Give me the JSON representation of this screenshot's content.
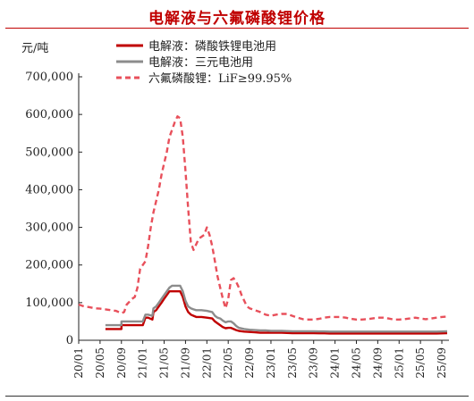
{
  "title": "电解液与六氟磷酸锂价格",
  "chart_data": {
    "type": "line",
    "title": "电解液与六氟磷酸锂价格",
    "ylabel": "元/吨",
    "xlabel": "",
    "ylim": [
      0,
      700000
    ],
    "yticks": [
      "0",
      "100,000",
      "200,000",
      "300,000",
      "400,000",
      "500,000",
      "600,000",
      "700,000"
    ],
    "xticks": [
      "20/01",
      "20/05",
      "20/09",
      "21/01",
      "21/05",
      "21/09",
      "22/01",
      "22/05",
      "22/09",
      "23/01",
      "23/05",
      "23/09",
      "24/01",
      "24/05",
      "24/09",
      "25/01",
      "25/05",
      "25/09"
    ],
    "legend_position": "top",
    "grid": false,
    "series": [
      {
        "name": "电解液：磷酸铁锂电池用",
        "color": "#c00000",
        "style": "solid",
        "points": [
          [
            5,
            30000
          ],
          [
            8,
            30000
          ],
          [
            8,
            40000
          ],
          [
            11,
            40000
          ],
          [
            12,
            40000
          ],
          [
            12.5,
            60000
          ],
          [
            13,
            60000
          ],
          [
            13.8,
            55000
          ],
          [
            14,
            75000
          ],
          [
            14.5,
            80000
          ],
          [
            15,
            90000
          ],
          [
            15.5,
            100000
          ],
          [
            16,
            110000
          ],
          [
            16.5,
            120000
          ],
          [
            17,
            130000
          ],
          [
            18,
            130000
          ],
          [
            19,
            130000
          ],
          [
            19.5,
            115000
          ],
          [
            20,
            90000
          ],
          [
            20.5,
            75000
          ],
          [
            21,
            68000
          ],
          [
            21.5,
            65000
          ],
          [
            22,
            62000
          ],
          [
            23,
            62000
          ],
          [
            24,
            60000
          ],
          [
            25,
            58000
          ],
          [
            25.5,
            50000
          ],
          [
            26,
            45000
          ],
          [
            26.5,
            40000
          ],
          [
            27,
            35000
          ],
          [
            27.5,
            32000
          ],
          [
            28,
            33000
          ],
          [
            28.5,
            33000
          ],
          [
            29,
            30000
          ],
          [
            29.5,
            27000
          ],
          [
            30,
            25000
          ],
          [
            31,
            23000
          ],
          [
            32,
            22000
          ],
          [
            33,
            21000
          ],
          [
            34,
            20000
          ],
          [
            35,
            20000
          ],
          [
            36,
            20000
          ],
          [
            37,
            20000
          ],
          [
            38,
            20000
          ],
          [
            39,
            19500
          ],
          [
            40,
            19000
          ],
          [
            41,
            19000
          ],
          [
            42,
            19000
          ],
          [
            43,
            19000
          ],
          [
            44,
            19000
          ],
          [
            45,
            18500
          ],
          [
            46,
            18500
          ],
          [
            47,
            18000
          ],
          [
            48,
            18000
          ],
          [
            49,
            18000
          ],
          [
            50,
            18000
          ],
          [
            51,
            18000
          ],
          [
            52,
            18000
          ],
          [
            53,
            18000
          ],
          [
            54,
            18000
          ],
          [
            55,
            18000
          ],
          [
            56,
            18000
          ],
          [
            57,
            18000
          ],
          [
            58,
            18000
          ],
          [
            59,
            18000
          ],
          [
            60,
            18000
          ],
          [
            61,
            18000
          ],
          [
            62,
            18000
          ],
          [
            63,
            18000
          ],
          [
            64,
            18000
          ],
          [
            65,
            18000
          ],
          [
            67,
            18000
          ],
          [
            69,
            19000
          ]
        ]
      },
      {
        "name": "电解液：三元电池用",
        "color": "#8c8c8c",
        "style": "solid",
        "points": [
          [
            5,
            40000
          ],
          [
            8,
            40000
          ],
          [
            8,
            50000
          ],
          [
            11,
            50000
          ],
          [
            12,
            50000
          ],
          [
            12.5,
            68000
          ],
          [
            13,
            68000
          ],
          [
            13.8,
            65000
          ],
          [
            14,
            85000
          ],
          [
            14.5,
            90000
          ],
          [
            15,
            100000
          ],
          [
            15.5,
            110000
          ],
          [
            16,
            120000
          ],
          [
            16.5,
            130000
          ],
          [
            17,
            140000
          ],
          [
            17.5,
            145000
          ],
          [
            18,
            145000
          ],
          [
            19,
            145000
          ],
          [
            19.5,
            130000
          ],
          [
            20,
            105000
          ],
          [
            20.5,
            90000
          ],
          [
            21,
            85000
          ],
          [
            21.5,
            82000
          ],
          [
            22,
            80000
          ],
          [
            23,
            80000
          ],
          [
            24,
            78000
          ],
          [
            25,
            75000
          ],
          [
            25.5,
            65000
          ],
          [
            26,
            60000
          ],
          [
            26.5,
            58000
          ],
          [
            27,
            52000
          ],
          [
            27.5,
            48000
          ],
          [
            28,
            50000
          ],
          [
            28.5,
            50000
          ],
          [
            29,
            45000
          ],
          [
            29.5,
            38000
          ],
          [
            30,
            33000
          ],
          [
            31,
            30000
          ],
          [
            32,
            28000
          ],
          [
            33,
            27000
          ],
          [
            34,
            26000
          ],
          [
            35,
            26000
          ],
          [
            36,
            25000
          ],
          [
            37,
            25000
          ],
          [
            38,
            25000
          ],
          [
            39,
            24500
          ],
          [
            40,
            24000
          ],
          [
            41,
            24000
          ],
          [
            42,
            24000
          ],
          [
            43,
            24000
          ],
          [
            44,
            24000
          ],
          [
            45,
            23500
          ],
          [
            46,
            23500
          ],
          [
            47,
            23000
          ],
          [
            48,
            23000
          ],
          [
            49,
            23000
          ],
          [
            50,
            23000
          ],
          [
            51,
            23000
          ],
          [
            52,
            23000
          ],
          [
            53,
            23000
          ],
          [
            54,
            23000
          ],
          [
            55,
            23000
          ],
          [
            56,
            23000
          ],
          [
            57,
            23000
          ],
          [
            58,
            23000
          ],
          [
            59,
            23000
          ],
          [
            60,
            23000
          ],
          [
            61,
            23000
          ],
          [
            62,
            23000
          ],
          [
            63,
            23000
          ],
          [
            64,
            23000
          ],
          [
            65,
            23000
          ],
          [
            67,
            23000
          ],
          [
            69,
            24000
          ]
        ]
      },
      {
        "name": "六氟磷酸锂：LiF≥99.95%",
        "color": "#e8505b",
        "style": "dashed",
        "points": [
          [
            0,
            95000
          ],
          [
            1,
            90000
          ],
          [
            2,
            88000
          ],
          [
            3,
            85000
          ],
          [
            4,
            84000
          ],
          [
            5,
            82000
          ],
          [
            6,
            80000
          ],
          [
            7,
            78000
          ],
          [
            8,
            72000
          ],
          [
            8.5,
            75000
          ],
          [
            9,
            95000
          ],
          [
            10,
            110000
          ],
          [
            10.5,
            115000
          ],
          [
            11,
            140000
          ],
          [
            11.5,
            190000
          ],
          [
            12,
            200000
          ],
          [
            12.5,
            210000
          ],
          [
            13,
            250000
          ],
          [
            13.5,
            300000
          ],
          [
            14,
            340000
          ],
          [
            14.5,
            370000
          ],
          [
            15,
            400000
          ],
          [
            15.5,
            440000
          ],
          [
            16,
            470000
          ],
          [
            16.5,
            500000
          ],
          [
            17,
            540000
          ],
          [
            17.5,
            560000
          ],
          [
            18,
            580000
          ],
          [
            18.5,
            595000
          ],
          [
            19,
            590000
          ],
          [
            19.5,
            540000
          ],
          [
            20,
            450000
          ],
          [
            20.5,
            350000
          ],
          [
            21,
            260000
          ],
          [
            21.5,
            240000
          ],
          [
            22,
            255000
          ],
          [
            22.5,
            270000
          ],
          [
            23,
            275000
          ],
          [
            23.5,
            280000
          ],
          [
            24,
            300000
          ],
          [
            24.5,
            280000
          ],
          [
            25,
            250000
          ],
          [
            25.5,
            210000
          ],
          [
            26,
            170000
          ],
          [
            26.5,
            140000
          ],
          [
            27,
            110000
          ],
          [
            27.5,
            85000
          ],
          [
            28,
            110000
          ],
          [
            28.5,
            160000
          ],
          [
            29,
            165000
          ],
          [
            29.5,
            155000
          ],
          [
            30,
            140000
          ],
          [
            30.5,
            120000
          ],
          [
            31,
            105000
          ],
          [
            31.5,
            90000
          ],
          [
            32,
            85000
          ],
          [
            33,
            80000
          ],
          [
            34,
            75000
          ],
          [
            35,
            68000
          ],
          [
            36,
            65000
          ],
          [
            37,
            68000
          ],
          [
            38,
            70000
          ],
          [
            39,
            70000
          ],
          [
            40,
            65000
          ],
          [
            41,
            60000
          ],
          [
            42,
            56000
          ],
          [
            43,
            55000
          ],
          [
            44,
            55000
          ],
          [
            45,
            57000
          ],
          [
            46,
            60000
          ],
          [
            47,
            62000
          ],
          [
            48,
            62000
          ],
          [
            49,
            62000
          ],
          [
            50,
            60000
          ],
          [
            51,
            57000
          ],
          [
            52,
            55000
          ],
          [
            53,
            55000
          ],
          [
            54,
            56000
          ],
          [
            55,
            58000
          ],
          [
            56,
            60000
          ],
          [
            57,
            60000
          ],
          [
            58,
            58000
          ],
          [
            59,
            55000
          ],
          [
            60,
            55000
          ],
          [
            61,
            56000
          ],
          [
            62,
            58000
          ],
          [
            63,
            60000
          ],
          [
            64,
            58000
          ],
          [
            65,
            56000
          ],
          [
            66,
            58000
          ],
          [
            67,
            60000
          ],
          [
            68,
            62000
          ],
          [
            69,
            63000
          ]
        ]
      }
    ]
  }
}
